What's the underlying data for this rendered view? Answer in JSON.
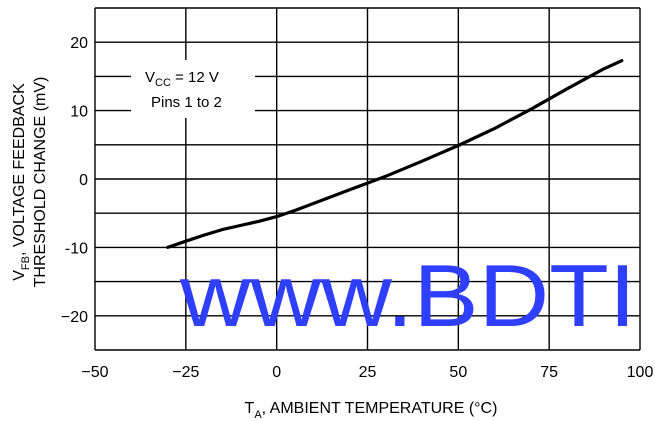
{
  "chart_data": {
    "type": "line",
    "title": "",
    "xlabel": {
      "prefix": "T",
      "sub": "A",
      "rest": ", AMBIENT TEMPERATURE (°C)"
    },
    "ylabel": {
      "line1_prefix": "V",
      "line1_sub": "FB",
      "line1_rest": ", VOLTAGE FEEDBACK",
      "line2": "THRESHOLD CHANGE (mV)"
    },
    "xlim": [
      -50,
      100
    ],
    "ylim": [
      -25,
      25
    ],
    "x_ticks": [
      -50,
      -25,
      0,
      25,
      50,
      75,
      100
    ],
    "x_tick_labels": [
      "−50",
      "−25",
      "0",
      "25",
      "50",
      "75",
      "100"
    ],
    "y_ticks": [
      20,
      10,
      0,
      -10,
      -20
    ],
    "y_tick_labels": [
      "20",
      "10",
      "0",
      "-10",
      "−20"
    ],
    "grid_x": [
      -50,
      -25,
      0,
      25,
      50,
      75,
      100
    ],
    "grid_y": [
      -25,
      -20,
      -15,
      -10,
      -5,
      0,
      5,
      10,
      15,
      20,
      25
    ],
    "annotation": {
      "line1_prefix": "V",
      "line1_sub": "CC",
      "line1_rest": " = 12 V",
      "line2": "Pins 1 to 2"
    },
    "series": [
      {
        "x": [
          -30,
          -25,
          -20,
          -15,
          -10,
          -5,
          0,
          5,
          10,
          15,
          20,
          25,
          30,
          40,
          50,
          60,
          70,
          80,
          90,
          95
        ],
        "y": [
          -10,
          -9.1,
          -8.2,
          -7.4,
          -6.8,
          -6.2,
          -5.5,
          -4.6,
          -3.6,
          -2.6,
          -1.6,
          -0.6,
          0.4,
          2.6,
          4.9,
          7.4,
          10.2,
          13.2,
          16.1,
          17.3
        ]
      }
    ],
    "line_color": "#000000",
    "grid": true
  },
  "watermark": {
    "text": "www.BDTI",
    "color": "#2f3fff"
  }
}
